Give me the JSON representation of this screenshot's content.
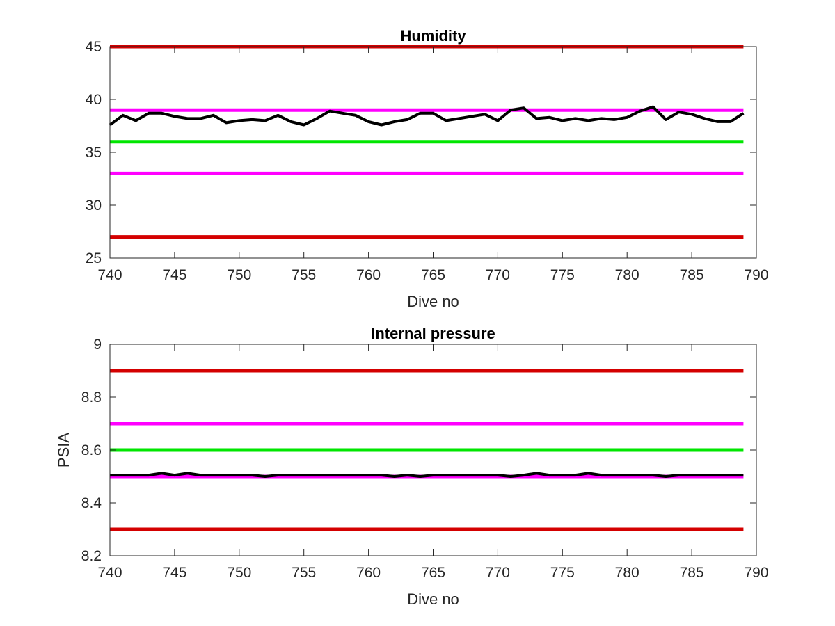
{
  "chart_data": [
    {
      "type": "line",
      "title": "Humidity",
      "xlabel": "Dive no",
      "ylabel": "",
      "xlim": [
        740,
        790
      ],
      "ylim": [
        25,
        45
      ],
      "xticks": [
        "740",
        "745",
        "750",
        "755",
        "760",
        "765",
        "770",
        "775",
        "780",
        "785",
        "790"
      ],
      "yticks": [
        "25",
        "30",
        "35",
        "40",
        "45"
      ],
      "grid": false,
      "legend": "none",
      "threshold_lines": [
        {
          "value": 45,
          "color": "#d40000"
        },
        {
          "value": 39,
          "color": "#ff00ff"
        },
        {
          "value": 36,
          "color": "#00e600"
        },
        {
          "value": 33,
          "color": "#ff00ff"
        },
        {
          "value": 27,
          "color": "#d40000"
        }
      ],
      "series": [
        {
          "color": "#000000",
          "x": [
            740,
            741,
            742,
            743,
            744,
            745,
            746,
            747,
            748,
            749,
            750,
            751,
            752,
            753,
            754,
            755,
            756,
            757,
            758,
            759,
            760,
            761,
            762,
            763,
            764,
            765,
            766,
            767,
            768,
            769,
            770,
            771,
            772,
            773,
            774,
            775,
            776,
            777,
            778,
            779,
            780,
            781,
            782,
            783,
            784,
            785,
            786,
            787,
            788,
            789
          ],
          "y": [
            37.6,
            38.5,
            38.0,
            38.7,
            38.7,
            38.4,
            38.2,
            38.2,
            38.5,
            37.8,
            38.0,
            38.1,
            38.0,
            38.5,
            37.9,
            37.6,
            38.2,
            38.9,
            38.7,
            38.5,
            37.9,
            37.6,
            37.9,
            38.1,
            38.7,
            38.7,
            38.0,
            38.2,
            38.4,
            38.6,
            38.0,
            39.0,
            39.2,
            38.2,
            38.3,
            38.0,
            38.2,
            38.0,
            38.2,
            38.1,
            38.3,
            38.9,
            39.3,
            38.1,
            38.8,
            38.6,
            38.2,
            37.9,
            37.9,
            38.7
          ]
        }
      ]
    },
    {
      "type": "line",
      "title": "Internal pressure",
      "xlabel": "Dive no",
      "ylabel": "PSIA",
      "xlim": [
        740,
        790
      ],
      "ylim": [
        8.2,
        9
      ],
      "xticks": [
        "740",
        "745",
        "750",
        "755",
        "760",
        "765",
        "770",
        "775",
        "780",
        "785",
        "790"
      ],
      "yticks": [
        "8.2",
        "8.4",
        "8.6",
        "8.8",
        "9"
      ],
      "grid": false,
      "legend": "none",
      "threshold_lines": [
        {
          "value": 8.9,
          "color": "#d40000"
        },
        {
          "value": 8.7,
          "color": "#ff00ff"
        },
        {
          "value": 8.6,
          "color": "#00e600"
        },
        {
          "value": 8.5,
          "color": "#ff00ff"
        },
        {
          "value": 8.3,
          "color": "#d40000"
        }
      ],
      "series": [
        {
          "color": "#000000",
          "x": [
            740,
            741,
            742,
            743,
            744,
            745,
            746,
            747,
            748,
            749,
            750,
            751,
            752,
            753,
            754,
            755,
            756,
            757,
            758,
            759,
            760,
            761,
            762,
            763,
            764,
            765,
            766,
            767,
            768,
            769,
            770,
            771,
            772,
            773,
            774,
            775,
            776,
            777,
            778,
            779,
            780,
            781,
            782,
            783,
            784,
            785,
            786,
            787,
            788,
            789
          ],
          "y": [
            8.505,
            8.505,
            8.505,
            8.505,
            8.512,
            8.505,
            8.512,
            8.505,
            8.505,
            8.505,
            8.505,
            8.505,
            8.5,
            8.505,
            8.505,
            8.505,
            8.505,
            8.505,
            8.505,
            8.505,
            8.505,
            8.505,
            8.5,
            8.505,
            8.5,
            8.505,
            8.505,
            8.505,
            8.505,
            8.505,
            8.505,
            8.5,
            8.505,
            8.512,
            8.505,
            8.505,
            8.505,
            8.512,
            8.505,
            8.505,
            8.505,
            8.505,
            8.505,
            8.5,
            8.505,
            8.505,
            8.505,
            8.505,
            8.505,
            8.505
          ]
        }
      ]
    }
  ]
}
